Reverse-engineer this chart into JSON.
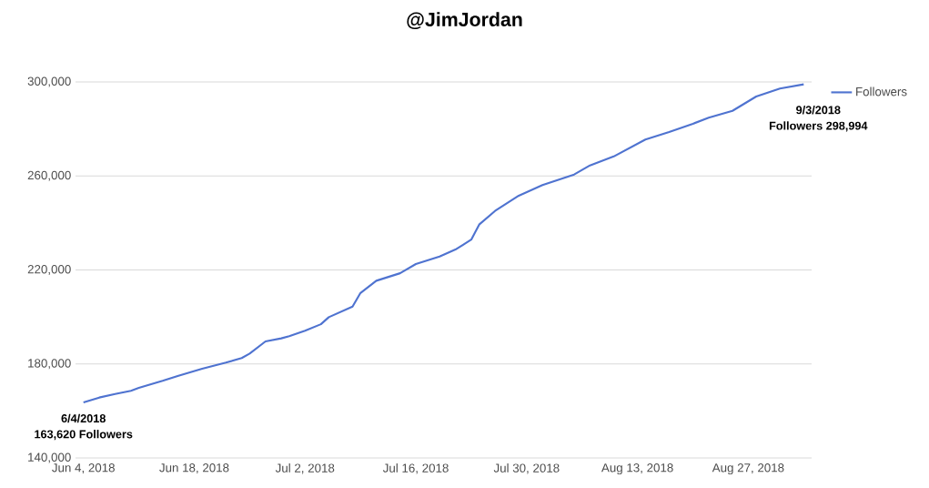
{
  "chart_data": {
    "type": "line",
    "title": "@JimJordan",
    "x": [
      "2018-06-04",
      "2018-06-06",
      "2018-06-08",
      "2018-06-10",
      "2018-06-11",
      "2018-06-14",
      "2018-06-16",
      "2018-06-19",
      "2018-06-22",
      "2018-06-24",
      "2018-06-25",
      "2018-06-27",
      "2018-06-29",
      "2018-06-30",
      "2018-07-02",
      "2018-07-04",
      "2018-07-05",
      "2018-07-08",
      "2018-07-09",
      "2018-07-11",
      "2018-07-14",
      "2018-07-16",
      "2018-07-19",
      "2018-07-21",
      "2018-07-23",
      "2018-07-24",
      "2018-07-26",
      "2018-07-29",
      "2018-08-01",
      "2018-08-05",
      "2018-08-07",
      "2018-08-10",
      "2018-08-14",
      "2018-08-17",
      "2018-08-20",
      "2018-08-22",
      "2018-08-25",
      "2018-08-28",
      "2018-08-31",
      "2018-09-03"
    ],
    "series": [
      {
        "name": "Followers",
        "color": "#4f73d0",
        "values": [
          163620,
          165700,
          167200,
          168600,
          169800,
          172800,
          175000,
          178000,
          180600,
          182500,
          184400,
          189600,
          190900,
          191800,
          194100,
          196900,
          199900,
          204400,
          210200,
          215400,
          218600,
          222500,
          225700,
          228700,
          232900,
          239300,
          245100,
          251600,
          256100,
          260600,
          264500,
          268300,
          275500,
          278700,
          282200,
          284800,
          287700,
          293800,
          297200,
          298994
        ]
      }
    ],
    "xlim": [
      "2018-06-03",
      "2018-09-04"
    ],
    "ylim": [
      140000,
      300000
    ],
    "xticks": [
      {
        "value": "2018-06-04",
        "label": "Jun 4, 2018"
      },
      {
        "value": "2018-06-18",
        "label": "Jun 18, 2018"
      },
      {
        "value": "2018-07-02",
        "label": "Jul 2, 2018"
      },
      {
        "value": "2018-07-16",
        "label": "Jul 16, 2018"
      },
      {
        "value": "2018-07-30",
        "label": "Jul 30, 2018"
      },
      {
        "value": "2018-08-13",
        "label": "Aug 13, 2018"
      },
      {
        "value": "2018-08-27",
        "label": "Aug 27, 2018"
      }
    ],
    "yticks": [
      {
        "value": 140000,
        "label": "140,000"
      },
      {
        "value": 180000,
        "label": "180,000"
      },
      {
        "value": 220000,
        "label": "220,000"
      },
      {
        "value": 260000,
        "label": "260,000"
      },
      {
        "value": 300000,
        "label": "300,000"
      }
    ],
    "annotations": [
      {
        "text": "6/4/2018",
        "x": "2018-06-04",
        "y": 163620
      },
      {
        "text": "163,620 Followers",
        "x": "2018-06-04",
        "y": 163620
      },
      {
        "text": "9/3/2018",
        "x": "2018-09-03",
        "y": 298994
      },
      "Followers 298,994"
    ],
    "grid": "y",
    "legend": "top right",
    "marker": "none",
    "line_style": "solid"
  }
}
